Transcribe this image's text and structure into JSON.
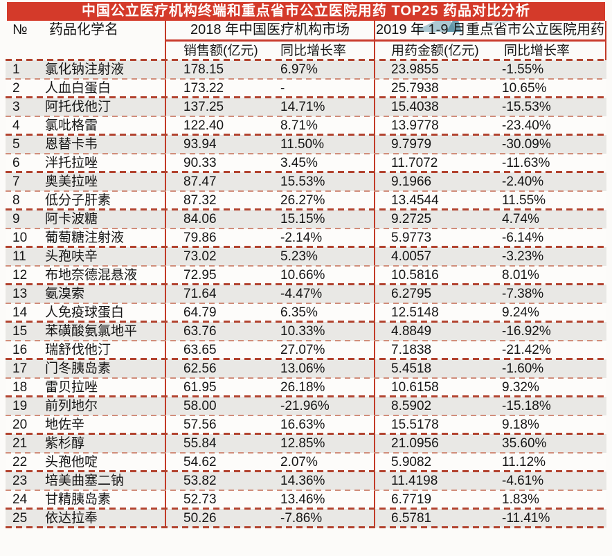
{
  "title": "中国公立医疗机构终端和重点省市公立医院用药 TOP25 药品对比分析",
  "chart_data": {
    "type": "table",
    "title": "中国公立医疗机构终端和重点省市公立医院用药 TOP25 药品对比分析",
    "header": {
      "rank": "№",
      "drug_name": "药品化学名",
      "group_2018": "2018 年中国医疗机构市场",
      "group_2019": "2019 年 1-9 月重点省市公立医院用药",
      "sales_2018": "销售额(亿元)",
      "yoy_2018": "同比增长率",
      "amount_2019": "用药金额(亿元)",
      "yoy_2019": "同比增长率"
    },
    "rows": [
      {
        "rank": "1",
        "name": "氯化钠注射液",
        "sales_2018": "178.15",
        "yoy_2018": "6.97%",
        "amount_2019": "23.9855",
        "yoy_2019": "-1.55%"
      },
      {
        "rank": "2",
        "name": "人血白蛋白",
        "sales_2018": "173.22",
        "yoy_2018": "-",
        "amount_2019": "25.7938",
        "yoy_2019": "10.65%"
      },
      {
        "rank": "3",
        "name": "阿托伐他汀",
        "sales_2018": "137.25",
        "yoy_2018": "14.71%",
        "amount_2019": "15.4038",
        "yoy_2019": "-15.53%"
      },
      {
        "rank": "4",
        "name": "氯吡格雷",
        "sales_2018": "122.40",
        "yoy_2018": "8.71%",
        "amount_2019": "13.9778",
        "yoy_2019": "-23.40%"
      },
      {
        "rank": "5",
        "name": "恩替卡韦",
        "sales_2018": "93.94",
        "yoy_2018": "11.50%",
        "amount_2019": "9.7979",
        "yoy_2019": "-30.09%"
      },
      {
        "rank": "6",
        "name": "泮托拉唑",
        "sales_2018": "90.33",
        "yoy_2018": "3.45%",
        "amount_2019": "11.7072",
        "yoy_2019": "-11.63%"
      },
      {
        "rank": "7",
        "name": "奥美拉唑",
        "sales_2018": "87.47",
        "yoy_2018": "15.53%",
        "amount_2019": "9.1966",
        "yoy_2019": "-2.40%"
      },
      {
        "rank": "8",
        "name": "低分子肝素",
        "sales_2018": "87.32",
        "yoy_2018": "26.27%",
        "amount_2019": "13.4544",
        "yoy_2019": "11.55%"
      },
      {
        "rank": "9",
        "name": "阿卡波糖",
        "sales_2018": "84.06",
        "yoy_2018": "15.15%",
        "amount_2019": "9.2725",
        "yoy_2019": "4.74%"
      },
      {
        "rank": "10",
        "name": "葡萄糖注射液",
        "sales_2018": "79.86",
        "yoy_2018": "-2.14%",
        "amount_2019": "5.9773",
        "yoy_2019": "-6.14%"
      },
      {
        "rank": "11",
        "name": "头孢呋辛",
        "sales_2018": "73.02",
        "yoy_2018": "5.23%",
        "amount_2019": "4.0057",
        "yoy_2019": "-3.23%"
      },
      {
        "rank": "12",
        "name": "布地奈德混悬液",
        "sales_2018": "72.95",
        "yoy_2018": "10.66%",
        "amount_2019": "10.5816",
        "yoy_2019": "8.01%"
      },
      {
        "rank": "13",
        "name": "氨溴索",
        "sales_2018": "71.64",
        "yoy_2018": "-4.47%",
        "amount_2019": "6.2795",
        "yoy_2019": "-7.38%"
      },
      {
        "rank": "14",
        "name": "人免疫球蛋白",
        "sales_2018": "64.79",
        "yoy_2018": "6.35%",
        "amount_2019": "12.5148",
        "yoy_2019": "9.24%"
      },
      {
        "rank": "15",
        "name": "苯磺酸氨氯地平",
        "sales_2018": "63.76",
        "yoy_2018": "10.33%",
        "amount_2019": "4.8849",
        "yoy_2019": "-16.92%"
      },
      {
        "rank": "16",
        "name": "瑞舒伐他汀",
        "sales_2018": "63.65",
        "yoy_2018": "27.07%",
        "amount_2019": "7.1838",
        "yoy_2019": "-21.42%"
      },
      {
        "rank": "17",
        "name": "门冬胰岛素",
        "sales_2018": "62.56",
        "yoy_2018": "13.06%",
        "amount_2019": "5.4518",
        "yoy_2019": "-1.60%"
      },
      {
        "rank": "18",
        "name": "雷贝拉唑",
        "sales_2018": "61.95",
        "yoy_2018": "26.18%",
        "amount_2019": "10.6158",
        "yoy_2019": "9.32%"
      },
      {
        "rank": "19",
        "name": "前列地尔",
        "sales_2018": "58.00",
        "yoy_2018": "-21.96%",
        "amount_2019": "8.5902",
        "yoy_2019": "-15.18%"
      },
      {
        "rank": "20",
        "name": "地佐辛",
        "sales_2018": "57.56",
        "yoy_2018": "16.63%",
        "amount_2019": "15.5178",
        "yoy_2019": "9.18%"
      },
      {
        "rank": "21",
        "name": "紫杉醇",
        "sales_2018": "55.84",
        "yoy_2018": "12.85%",
        "amount_2019": "21.0956",
        "yoy_2019": "35.60%"
      },
      {
        "rank": "22",
        "name": "头孢他啶",
        "sales_2018": "54.62",
        "yoy_2018": "2.07%",
        "amount_2019": "5.9082",
        "yoy_2019": "11.12%"
      },
      {
        "rank": "23",
        "name": "培美曲塞二钠",
        "sales_2018": "53.82",
        "yoy_2018": "14.36%",
        "amount_2019": "11.4198",
        "yoy_2019": "-4.61%"
      },
      {
        "rank": "24",
        "name": "甘精胰岛素",
        "sales_2018": "52.73",
        "yoy_2018": "13.46%",
        "amount_2019": "6.7719",
        "yoy_2019": "1.83%"
      },
      {
        "rank": "25",
        "name": "依达拉奉",
        "sales_2018": "50.26",
        "yoy_2018": "-7.86%",
        "amount_2019": "6.5781",
        "yoy_2019": "-11.41%"
      }
    ]
  },
  "colors": {
    "title_bg": "#d43a2a",
    "title_text": "#ffffff",
    "divider_red": "#c23b28",
    "dash_bold": "#b2432f",
    "dash_light": "#d08d7a",
    "row_gray": "#e9e8e5",
    "row_white": "#fdfcfa",
    "watermark_teal": "#4f8a9d"
  }
}
